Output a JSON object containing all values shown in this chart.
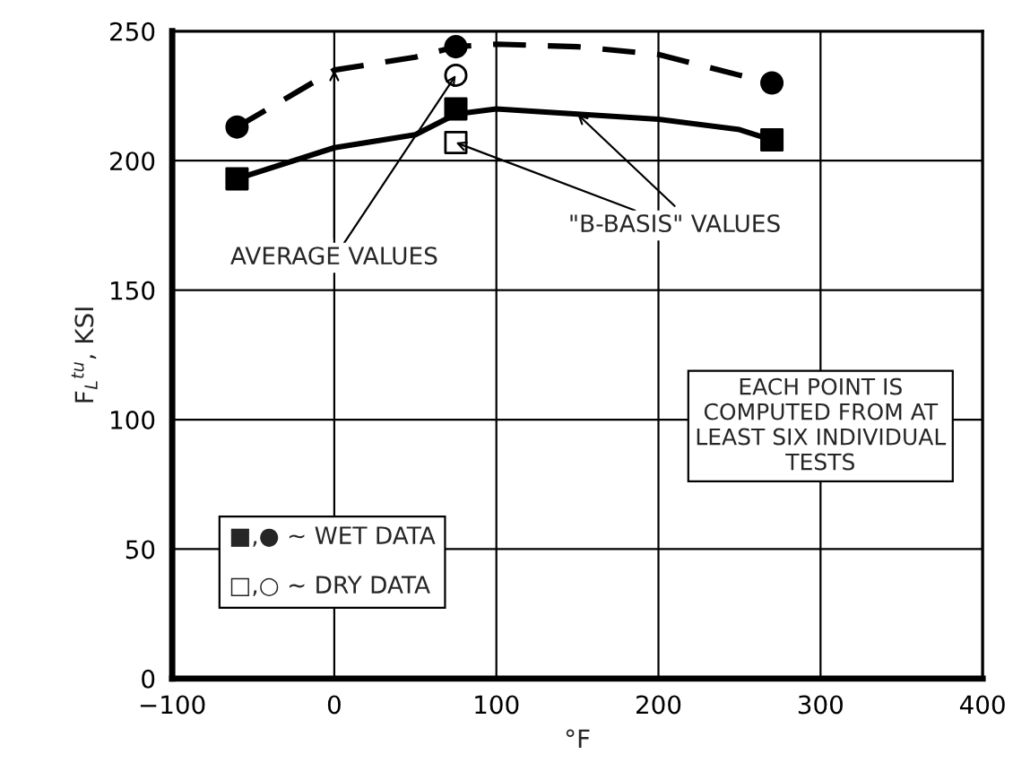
{
  "chart_data": {
    "type": "scatter",
    "xlabel": "°F",
    "ylabel": "F$_{L}$$^{tu}$, KSI",
    "xlim": [
      -100,
      400
    ],
    "xticks": [
      {
        "value": -100,
        "label": "−100"
      },
      0,
      100,
      200,
      300,
      400
    ],
    "ylim": [
      0,
      250
    ],
    "yticks": [
      0,
      50,
      100,
      150,
      200,
      250
    ],
    "grid": true,
    "legend": false,
    "series": [
      {
        "type": "line",
        "color": "#000000",
        "line_style": "dashed",
        "marker": "none",
        "x": [
          -60,
          0,
          50,
          75,
          100,
          150,
          200,
          250,
          270
        ],
        "values": [
          213,
          235,
          240,
          244,
          245,
          244,
          241,
          233,
          230
        ]
      },
      {
        "type": "line",
        "color": "#000000",
        "line_style": "solid",
        "marker": "none",
        "x": [
          -60,
          0,
          50,
          75,
          100,
          150,
          200,
          250,
          270
        ],
        "values": [
          193,
          205,
          210,
          218,
          220,
          218,
          216,
          212,
          208
        ]
      },
      {
        "color": "#000000",
        "marker": "circle",
        "x": [
          -60,
          75,
          270
        ],
        "values": [
          213,
          244,
          230
        ]
      },
      {
        "color": "#000000",
        "marker": "square",
        "x": [
          -60,
          75,
          270
        ],
        "values": [
          193,
          220,
          208
        ]
      },
      {
        "color": "#ffffff",
        "marker": "circle",
        "x": [
          75
        ],
        "values": [
          233
        ]
      },
      {
        "color": "#ffffff",
        "marker": "square",
        "x": [
          75
        ],
        "values": [
          207
        ]
      }
    ],
    "annotations": [
      {
        "text": "AVERAGE VALUES",
        "x": 75,
        "y": 233
      },
      {
        "text": "\"B-BASIS\" VALUES",
        "x": 75,
        "y": 207
      },
      "EACH POINT IS\nCOMPUTED FROM AT\nLEAST SIX INDIVIDUAL\nTESTS",
      "■,● ~ WET DATA\n\n□,○ ~ DRY DATA"
    ]
  }
}
